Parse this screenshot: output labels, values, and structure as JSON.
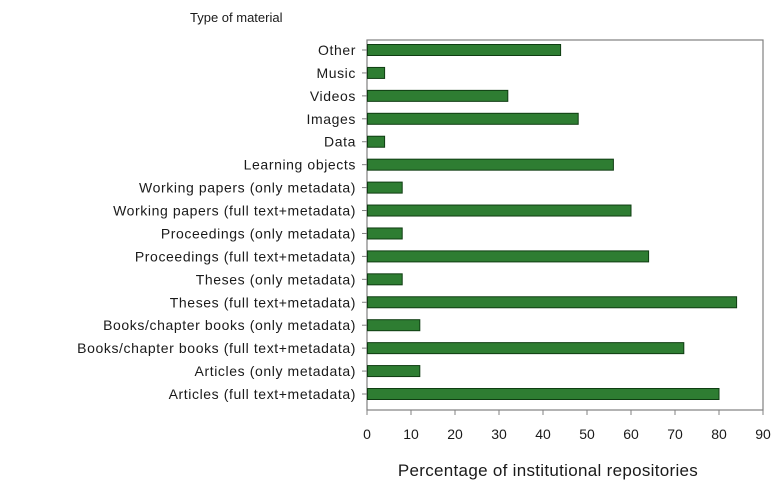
{
  "chart_data": {
    "type": "bar",
    "orientation": "horizontal",
    "ylabel": "Type of material",
    "xlabel": "Percentage of institutional repositories",
    "xlim": [
      0,
      90
    ],
    "xticks": [
      "0",
      "10",
      "20",
      "30",
      "40",
      "50",
      "60",
      "70",
      "80",
      "90"
    ],
    "grid": false,
    "bar_color": "#2e7d32",
    "categories": [
      "Other",
      "Music",
      "Videos",
      "Images",
      "Data",
      "Learning objects",
      "Working papers (only metadata)",
      "Working papers (full text+metadata)",
      "Proceedings (only metadata)",
      "Proceedings (full text+metadata)",
      "Theses (only metadata)",
      "Theses (full text+metadata)",
      "Books/chapter books  (only metadata)",
      "Books/chapter books (full text+metadata)",
      "Articles (only metadata)",
      "Articles (full text+metadata)"
    ],
    "values": [
      44,
      4,
      32,
      48,
      4,
      56,
      8,
      60,
      8,
      64,
      8,
      84,
      12,
      72,
      12,
      80
    ]
  }
}
